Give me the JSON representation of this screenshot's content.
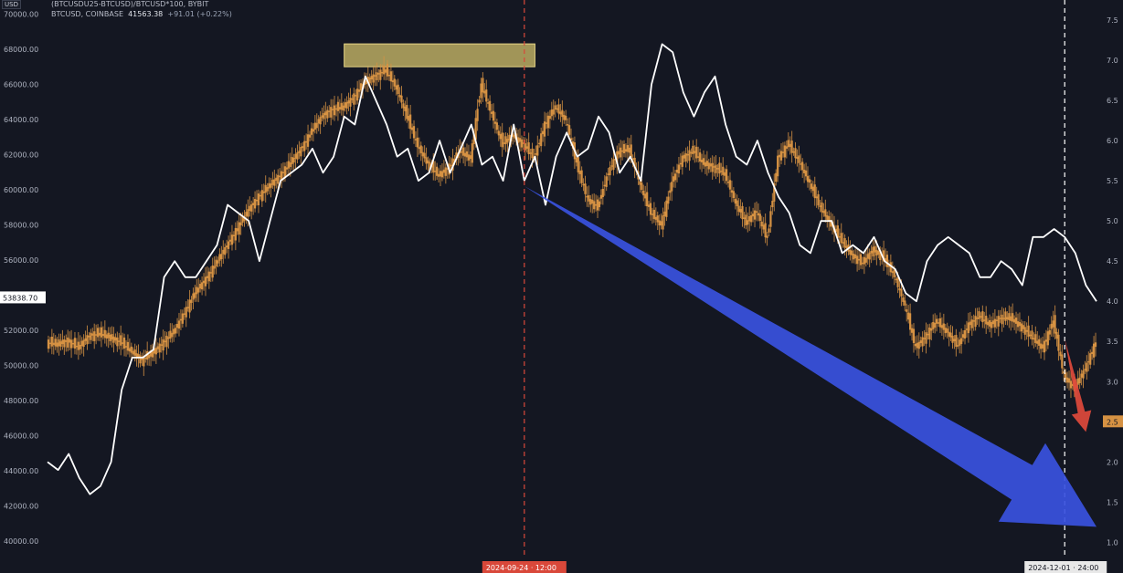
{
  "header": {
    "currency": "USD",
    "line1": "(BTCUSDU25-BTCUSD)/BTCUSD*100, BYBIT",
    "symbol": "BTCUSD, COINBASE",
    "price": "41563.38",
    "change": "+91.01 (+0.22%)"
  },
  "price_tag": "53838.70",
  "ratio_tag": "2.5",
  "x_axis_label": "2024-09-24 · 12:00",
  "x_axis_right_label": "2024-12-01 · 24:00",
  "colors": {
    "background": "#141722",
    "candles": "#d69243",
    "ratio_line": "#ffffff",
    "arrow_main": "#3a52e0",
    "arrow_small": "#e04a3c",
    "resistance_box": "#c9b868",
    "crosshair_red": "#d9483a",
    "crosshair_white": "#ffffff"
  },
  "chart_data": {
    "type": "line",
    "left_axis": {
      "ylim": [
        39000,
        70800
      ],
      "ticks": [
        "40000.00",
        "42000.00",
        "44000.00",
        "46000.00",
        "48000.00",
        "50000.00",
        "52000.00",
        "54000.00",
        "56000.00",
        "58000.00",
        "60000.00",
        "62000.00",
        "64000.00",
        "66000.00",
        "68000.00",
        "70000.00"
      ]
    },
    "right_axis": {
      "ylim": [
        0.8,
        7.75
      ],
      "ticks": [
        "1.0",
        "1.5",
        "2.0",
        "2.5",
        "3.0",
        "3.5",
        "4.0",
        "4.5",
        "5.0",
        "5.5",
        "6.0",
        "6.5",
        "7.0",
        "7.5"
      ]
    },
    "x": [
      0,
      1,
      2,
      3,
      4,
      5,
      6,
      7,
      8,
      9,
      10,
      11,
      12,
      13,
      14,
      15,
      16,
      17,
      18,
      19,
      20,
      21,
      22,
      23,
      24,
      25,
      26,
      27,
      28,
      29,
      30,
      31,
      32,
      33,
      34,
      35,
      36,
      37,
      38,
      39,
      40,
      41,
      42,
      43,
      44,
      45,
      46,
      47,
      48,
      49,
      50,
      51,
      52,
      53,
      54,
      55,
      56,
      57,
      58,
      59,
      60,
      61,
      62,
      63,
      64,
      65,
      66,
      67,
      68,
      69,
      70,
      71,
      72,
      73,
      74,
      75,
      76,
      77,
      78,
      79,
      80,
      81,
      82,
      83,
      84,
      85,
      86,
      87,
      88,
      89,
      90,
      91,
      92,
      93,
      94,
      95,
      96,
      97,
      98,
      99
    ],
    "series": [
      {
        "values": [
          51300,
          51200,
          51400,
          51000,
          51700,
          51800,
          51600,
          51300,
          50800,
          50300,
          50700,
          51300,
          51900,
          53000,
          54100,
          54900,
          55800,
          56800,
          57800,
          58800,
          59600,
          60200,
          60800,
          61500,
          62300,
          63300,
          64200,
          64600,
          64700,
          65300,
          66100,
          66500,
          66800,
          65800,
          64200,
          62500,
          61500,
          60800,
          61300,
          62200,
          61800,
          66000,
          64300,
          62600,
          63100,
          62600,
          61800,
          63700,
          64700,
          64000,
          61500,
          59500,
          59000,
          61000,
          62200,
          62300,
          60300,
          58700,
          58000,
          60400,
          61800,
          62200,
          61500,
          61300,
          60900,
          59300,
          58100,
          58800,
          57200,
          61800,
          62600,
          61600,
          60400,
          59000,
          58100,
          57100,
          56300,
          55800,
          56600,
          56100,
          55100,
          53400,
          51000,
          51700,
          52500,
          51900,
          51100,
          52300,
          52800,
          52300,
          52700,
          52700,
          52200,
          51600,
          51000,
          52500,
          49400,
          48700,
          49800,
          51300
        ]
      },
      {
        "values": [
          2.0,
          1.9,
          2.1,
          1.8,
          1.6,
          1.7,
          2.0,
          2.9,
          3.3,
          3.3,
          3.4,
          4.3,
          4.5,
          4.3,
          4.3,
          4.5,
          4.7,
          5.2,
          5.1,
          5.0,
          4.5,
          5.0,
          5.5,
          5.6,
          5.7,
          5.9,
          5.6,
          5.8,
          6.3,
          6.2,
          6.8,
          6.5,
          6.2,
          5.8,
          5.9,
          5.5,
          5.6,
          6.0,
          5.6,
          5.9,
          6.2,
          5.7,
          5.8,
          5.5,
          6.2,
          5.5,
          5.8,
          5.2,
          5.8,
          6.1,
          5.8,
          5.9,
          6.3,
          6.1,
          5.6,
          5.8,
          5.5,
          6.7,
          7.2,
          7.1,
          6.6,
          6.3,
          6.6,
          6.8,
          6.2,
          5.8,
          5.7,
          6.0,
          5.6,
          5.3,
          5.1,
          4.7,
          4.6,
          5.0,
          5.0,
          4.6,
          4.7,
          4.6,
          4.8,
          4.5,
          4.4,
          4.1,
          4.0,
          4.5,
          4.7,
          4.8,
          4.7,
          4.6,
          4.3,
          4.3,
          4.5,
          4.4,
          4.2,
          4.8,
          4.8,
          4.9,
          4.8,
          4.6,
          4.2,
          4.0
        ]
      }
    ],
    "annotations": [
      {
        "type": "resistance_zone",
        "price_range": [
          67000,
          68300
        ],
        "x_range": [
          28,
          46
        ]
      },
      {
        "type": "vertical_line",
        "style": "dashed",
        "color": "red",
        "x": 45
      },
      {
        "type": "vertical_line",
        "style": "dashed",
        "color": "white",
        "x": 96
      },
      {
        "type": "arrow",
        "color": "blue",
        "from": [
          45,
          60200
        ],
        "to": [
          99,
          40800
        ]
      },
      {
        "type": "arrow",
        "color": "red",
        "from": [
          96,
          51500
        ],
        "to": [
          98,
          46200
        ]
      }
    ]
  }
}
